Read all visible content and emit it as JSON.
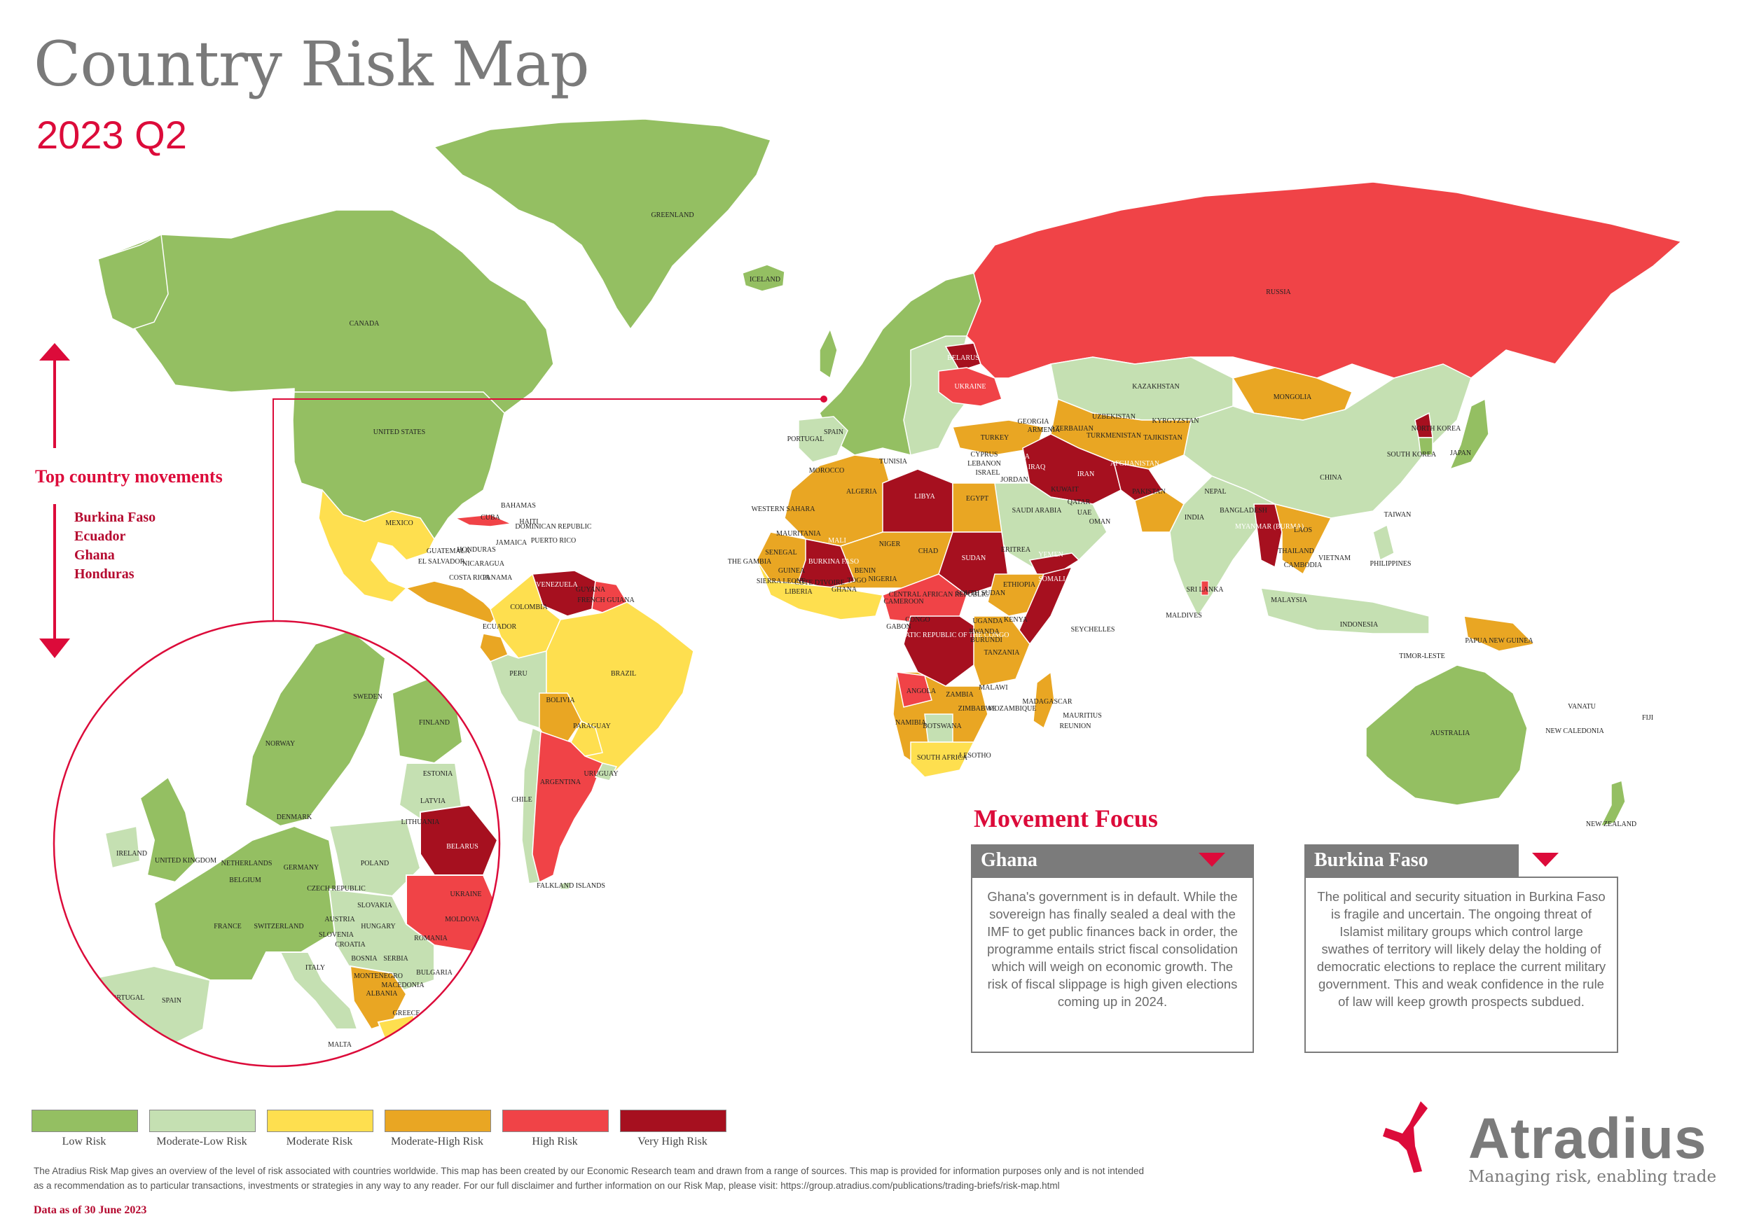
{
  "header": {
    "title": "Country Risk Map",
    "subtitle": "2023 Q2"
  },
  "colors": {
    "low": "#94bf62",
    "moderate_low": "#c5e0b2",
    "moderate": "#fedf4f",
    "moderate_high": "#e9a623",
    "high": "#f04347",
    "very_high": "#a6101f",
    "accent": "#dc0b3a",
    "ocean": "#ffffff"
  },
  "top_movements": {
    "title": "Top country movements",
    "countries": [
      "Burkina Faso",
      "Ecuador",
      "Ghana",
      "Honduras"
    ]
  },
  "map_labels": {
    "greenland": "GREENLAND",
    "iceland": "ICELAND",
    "canada": "CANADA",
    "united_states": "UNITED STATES",
    "mexico": "MEXICO",
    "cuba": "CUBA",
    "bahamas": "BAHAMAS",
    "haiti": "HAITI",
    "dominican_republic": "DOMINICAN REPUBLIC",
    "jamaica": "JAMAICA",
    "puerto_rico": "PUERTO RICO",
    "guatemala": "GUATEMALA",
    "el_salvador": "EL SALVADOR",
    "honduras": "HONDURAS",
    "nicaragua": "NICARAGUA",
    "costa_rica": "COSTA RICA",
    "panama": "PANAMA",
    "venezuela": "VENEZUELA",
    "guyana": "GUYANA",
    "suriname": "SURINAME",
    "french_guiana": "FRENCH GUIANA",
    "colombia": "COLOMBIA",
    "ecuador": "ECUADOR",
    "peru": "PERU",
    "brazil": "BRAZIL",
    "bolivia": "BOLIVIA",
    "paraguay": "PARAGUAY",
    "chile": "CHILE",
    "argentina": "ARGENTINA",
    "uruguay": "URUGUAY",
    "falkland": "FALKLAND ISLANDS",
    "russia": "RUSSIA",
    "kazakhstan": "KAZAKHSTAN",
    "mongolia": "MONGOLIA",
    "china": "CHINA",
    "north_korea": "NORTH KOREA",
    "south_korea": "SOUTH KOREA",
    "japan": "JAPAN",
    "taiwan": "TAIWAN",
    "india": "INDIA",
    "pakistan": "PAKISTAN",
    "afghanistan": "AFGHANISTAN",
    "iran": "IRAN",
    "iraq": "IRAQ",
    "syria": "SYRIA",
    "turkey": "TURKEY",
    "turkmenistan": "TURKMENISTAN",
    "uzbekistan": "UZBEKISTAN",
    "kyrgyzstan": "KYRGYZSTAN",
    "tajikistan": "TAJIKISTAN",
    "georgia": "GEORGIA",
    "armenia": "ARMENIA",
    "azerbaijan": "AZERBAIJAN",
    "cyprus": "CYPRUS",
    "lebanon": "LEBANON",
    "israel": "ISRAEL",
    "jordan": "JORDAN",
    "kuwait": "KUWAIT",
    "qatar": "QATAR",
    "uae": "UAE",
    "oman": "OMAN",
    "saudi_arabia": "SAUDI ARABIA",
    "yemen": "YEMEN",
    "nepal": "NEPAL",
    "bangladesh": "BANGLADESH",
    "sri_lanka": "SRI LANKA",
    "maldives": "MALDIVES",
    "myanmar": "MYANMAR (BURMA)",
    "thailand": "THAILAND",
    "laos": "LAOS",
    "cambodia": "CAMBODIA",
    "vietnam": "VIETNAM",
    "philippines": "PHILIPPINES",
    "malaysia": "MALAYSIA",
    "indonesia": "INDONESIA",
    "timor": "TIMOR-LESTE",
    "png": "PAPUA NEW GUINEA",
    "australia": "AUSTRALIA",
    "new_zealand": "NEW ZEALAND",
    "vanuatu": "VANATU",
    "fiji": "FIJI",
    "new_caledonia": "NEW CALEDONIA",
    "morocco": "MOROCCO",
    "western_sahara": "WESTERN SAHARA",
    "algeria": "ALGERIA",
    "tunisia": "TUNISIA",
    "libya": "LIBYA",
    "egypt": "EGYPT",
    "mauritania": "MAURITANIA",
    "mali": "MALI",
    "niger": "NIGER",
    "chad": "CHAD",
    "sudan": "SUDAN",
    "eritrea": "ERITREA",
    "ethiopia": "ETHIOPIA",
    "somalia": "SOMALIA",
    "senegal": "SENEGAL",
    "the_gambia": "THE GAMBIA",
    "guinea": "GUINEA",
    "sierra_leone": "SIERRA LEONE",
    "liberia": "LIBERIA",
    "cote_divoire": "CÔTE D'IVOIRE",
    "ghana": "GHANA",
    "burkina_faso": "BURKINA FASO",
    "togo": "TOGO",
    "benin": "BENIN",
    "nigeria": "NIGERIA",
    "cameroon": "CAMEROON",
    "car": "CENTRAL AFRICAN REPUBLIC",
    "south_sudan": "SOUTH SUDAN",
    "drc": "DEMOCRATIC REPUBLIC OF THE CONGO",
    "gabon": "GABON",
    "congo": "CONGO",
    "uganda": "UGANDA",
    "kenya": "KENYA",
    "rwanda": "RWANDA",
    "burundi": "BURUNDI",
    "tanzania": "TANZANIA",
    "angola": "ANGOLA",
    "zambia": "ZAMBIA",
    "malawi": "MALAWI",
    "mozambique": "MOZAMBIQUE",
    "zimbabwe": "ZIMBABWE",
    "namibia": "NAMIBIA",
    "botswana": "BOTSWANA",
    "south_africa": "SOUTH AFRICA",
    "lesotho": "LESOTHO",
    "madagascar": "MADAGASCAR",
    "mauritius": "MAURITIUS",
    "reunion": "REUNION",
    "seychelles": "SEYCHELLES",
    "spain": "SPAIN",
    "portugal": "PORTUGAL",
    "ukraine": "UKRAINE",
    "belarus": "BELARUS"
  },
  "inset_labels": {
    "sweden": "SWEDEN",
    "norway": "NORWAY",
    "finland": "FINLAND",
    "estonia": "ESTONIA",
    "latvia": "LATVIA",
    "lithuania": "LITHUANIA",
    "belarus": "BELARUS",
    "denmark": "DENMARK",
    "ireland": "IRELAND",
    "uk": "UNITED KINGDOM",
    "netherlands": "NETHERLANDS",
    "belgium": "BELGIUM",
    "germany": "GERMANY",
    "poland": "POLAND",
    "ukraine": "UKRAINE",
    "czech": "CZECH REPUBLIC",
    "slovakia": "SLOVAKIA",
    "france": "FRANCE",
    "switzerland": "SWITZERLAND",
    "austria": "AUSTRIA",
    "hungary": "HUNGARY",
    "moldova": "MOLDOVA",
    "romania": "ROMANIA",
    "slovenia": "SLOVENIA",
    "croatia": "CROATIA",
    "bosnia": "BOSNIA",
    "serbia": "SERBIA",
    "montenegro": "MONTENEGRO",
    "bulgaria": "BULGARIA",
    "macedonia": "MACEDONIA",
    "albania": "ALBANIA",
    "italy": "ITALY",
    "greece": "GREECE",
    "portugal": "PORTUGAL",
    "spain": "SPAIN",
    "malta": "MALTA"
  },
  "legend": [
    {
      "label": "Low Risk",
      "color": "#94bf62"
    },
    {
      "label": "Moderate-Low Risk",
      "color": "#c5e0b2"
    },
    {
      "label": "Moderate Risk",
      "color": "#fedf4f"
    },
    {
      "label": "Moderate-High Risk",
      "color": "#e9a623"
    },
    {
      "label": "High Risk",
      "color": "#f04347"
    },
    {
      "label": "Very High Risk",
      "color": "#a6101f"
    }
  ],
  "movement_focus": {
    "title": "Movement Focus",
    "cards": [
      {
        "country": "Ghana",
        "direction": "down",
        "text": "Ghana's government is in default. While the sovereign has finally sealed a deal with the IMF to get public finances back in order, the programme entails strict fiscal consolidation which will weigh on economic growth. The risk of fiscal slippage is high given elections coming up in 2024."
      },
      {
        "country": "Burkina Faso",
        "direction": "down",
        "text": "The political and security situation in Burkina Faso is fragile and uncertain. The ongoing threat of Islamist military groups which control large swathes of territory will likely delay the holding of democratic elections to replace the current military government. This and weak confidence in the rule of law will keep growth prospects subdued."
      }
    ]
  },
  "footer": {
    "disclaimer_1": "The Atradius Risk Map gives an overview of the level of risk associated with countries worldwide. This map has been created by our Economic Research team and drawn from a range of sources. This map is provided for information purposes only and is not intended",
    "disclaimer_2": "as a recommendation as to particular transactions, investments or strategies in any way to any reader. For our full disclaimer and further information on our Risk Map, please visit: https://group.atradius.com/publications/trading-briefs/risk-map.html",
    "data_date": "Data as of 30 June 2023"
  },
  "brand": {
    "name": "Atradius",
    "tagline": "Managing risk, enabling trade"
  }
}
